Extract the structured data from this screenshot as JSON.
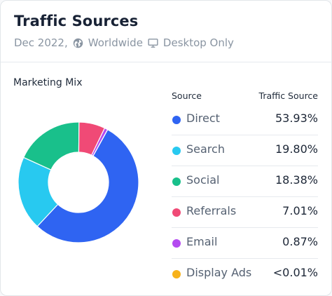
{
  "header": {
    "title": "Traffic Sources",
    "date": "Dec 2022,",
    "region": "Worldwide",
    "device": "Desktop Only",
    "icons": [
      "globe-icon",
      "desktop-icon"
    ]
  },
  "section": {
    "title": "Marketing Mix"
  },
  "table": {
    "col_source": "Source",
    "col_traffic": "Traffic Source",
    "rows": [
      {
        "label": "Direct",
        "value": "53.93%",
        "color": "#2f64f2"
      },
      {
        "label": "Search",
        "value": "19.80%",
        "color": "#28c9f0"
      },
      {
        "label": "Social",
        "value": "18.38%",
        "color": "#19c08b"
      },
      {
        "label": "Referrals",
        "value": "7.01%",
        "color": "#f04a76"
      },
      {
        "label": "Email",
        "value": "0.87%",
        "color": "#b44af0"
      },
      {
        "label": "Display Ads",
        "value": "<0.01%",
        "color": "#f7b21b"
      }
    ]
  },
  "chart_data": {
    "type": "pie",
    "title": "Marketing Mix",
    "categories": [
      "Direct",
      "Search",
      "Social",
      "Referrals",
      "Email",
      "Display Ads"
    ],
    "values": [
      53.93,
      19.8,
      18.38,
      7.01,
      0.87,
      0.01
    ],
    "colors": [
      "#2f64f2",
      "#28c9f0",
      "#19c08b",
      "#f04a76",
      "#b44af0",
      "#f7b21b"
    ],
    "legend_position": "right"
  }
}
